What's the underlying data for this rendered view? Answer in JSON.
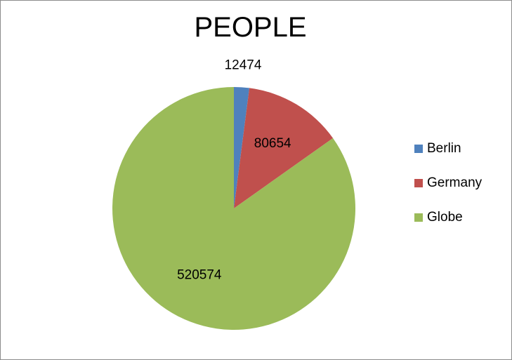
{
  "chart_data": {
    "type": "pie",
    "title": "PEOPLE",
    "categories": [
      "Berlin",
      "Germany",
      "Globe"
    ],
    "values": [
      12474,
      80654,
      520574
    ],
    "data_labels": [
      "12474",
      "80654",
      "520574"
    ],
    "colors": [
      "#4f81bd",
      "#c0504d",
      "#9bbb59"
    ],
    "legend_position": "right",
    "start_angle_deg": 0,
    "direction": "clockwise"
  }
}
